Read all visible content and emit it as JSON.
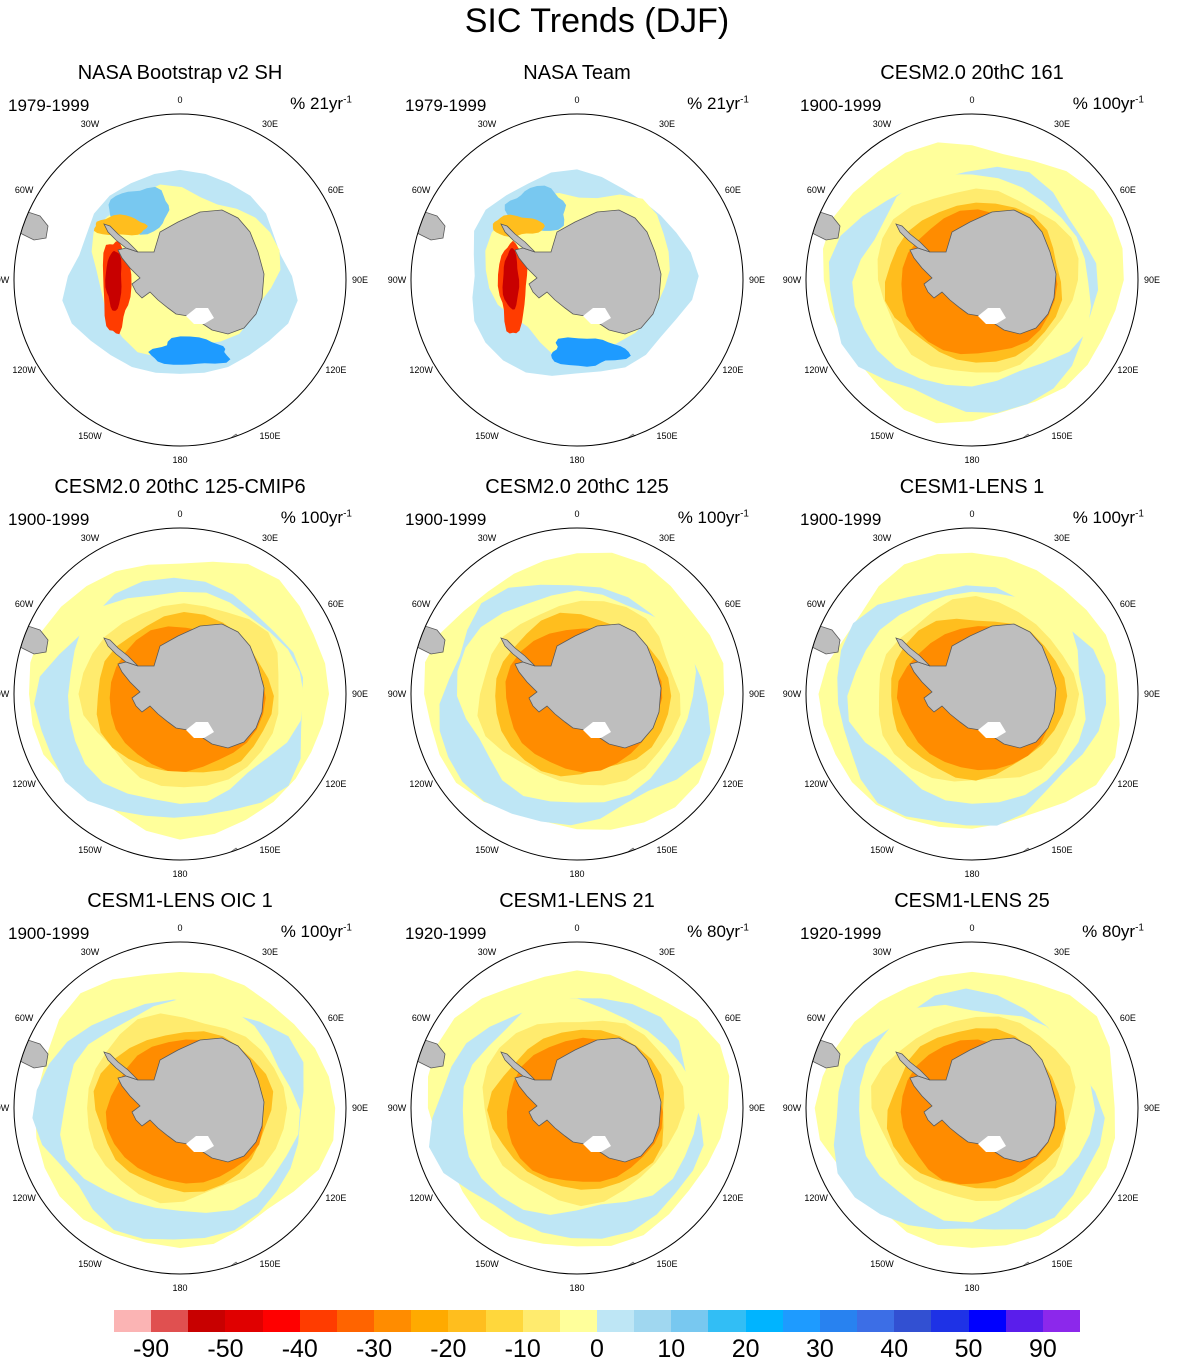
{
  "title": "SIC Trends (DJF)",
  "longitude_labels": [
    "0",
    "30E",
    "60E",
    "90E",
    "120E",
    "150E",
    "180",
    "150W",
    "120W",
    "90W",
    "60W",
    "30W"
  ],
  "panels": [
    {
      "title": "NASA Bootstrap v2 SH",
      "years": "1979-1999",
      "units": "% 21yr",
      "units_exp": "-1",
      "style": "obs"
    },
    {
      "title": "NASA Team",
      "years": "1979-1999",
      "units": "% 21yr",
      "units_exp": "-1",
      "style": "obs"
    },
    {
      "title": "CESM2.0 20thC 161",
      "years": "1900-1999",
      "units": "% 100yr",
      "units_exp": "-1",
      "style": "model"
    },
    {
      "title": "CESM2.0 20thC 125-CMIP6",
      "years": "1900-1999",
      "units": "% 100yr",
      "units_exp": "-1",
      "style": "model"
    },
    {
      "title": "CESM2.0 20thC 125",
      "years": "1900-1999",
      "units": "% 100yr",
      "units_exp": "-1",
      "style": "model"
    },
    {
      "title": "CESM1-LENS 1",
      "years": "1900-1999",
      "units": "% 100yr",
      "units_exp": "-1",
      "style": "model"
    },
    {
      "title": "CESM1-LENS OIC 1",
      "years": "1900-1999",
      "units": "% 100yr",
      "units_exp": "-1",
      "style": "model"
    },
    {
      "title": "CESM1-LENS 21",
      "years": "1920-1999",
      "units": "% 80yr",
      "units_exp": "-1",
      "style": "model"
    },
    {
      "title": "CESM1-LENS 25",
      "years": "1920-1999",
      "units": "% 80yr",
      "units_exp": "-1",
      "style": "model"
    }
  ],
  "colorbar": {
    "colors": [
      "#fbb4b4",
      "#e05050",
      "#c80000",
      "#e00000",
      "#ff0000",
      "#ff3c00",
      "#ff6400",
      "#ff8c00",
      "#ffaa00",
      "#ffbe1e",
      "#ffd73c",
      "#ffeb6e",
      "#ffff9b",
      "#bee6f5",
      "#a0d7f0",
      "#78c8f0",
      "#32bef5",
      "#00b4ff",
      "#1e9bff",
      "#2882f0",
      "#3c6ee6",
      "#3250d2",
      "#1e32e6",
      "#0000ff",
      "#5a1eeb",
      "#8c28eb"
    ],
    "tick_labels": [
      "-90",
      "-50",
      "-40",
      "-30",
      "-20",
      "-10",
      "0",
      "10",
      "20",
      "30",
      "40",
      "50",
      "90"
    ]
  },
  "palette": {
    "land": "#bebebe",
    "coast": "#5a5a5a",
    "ring": "#000000"
  }
}
